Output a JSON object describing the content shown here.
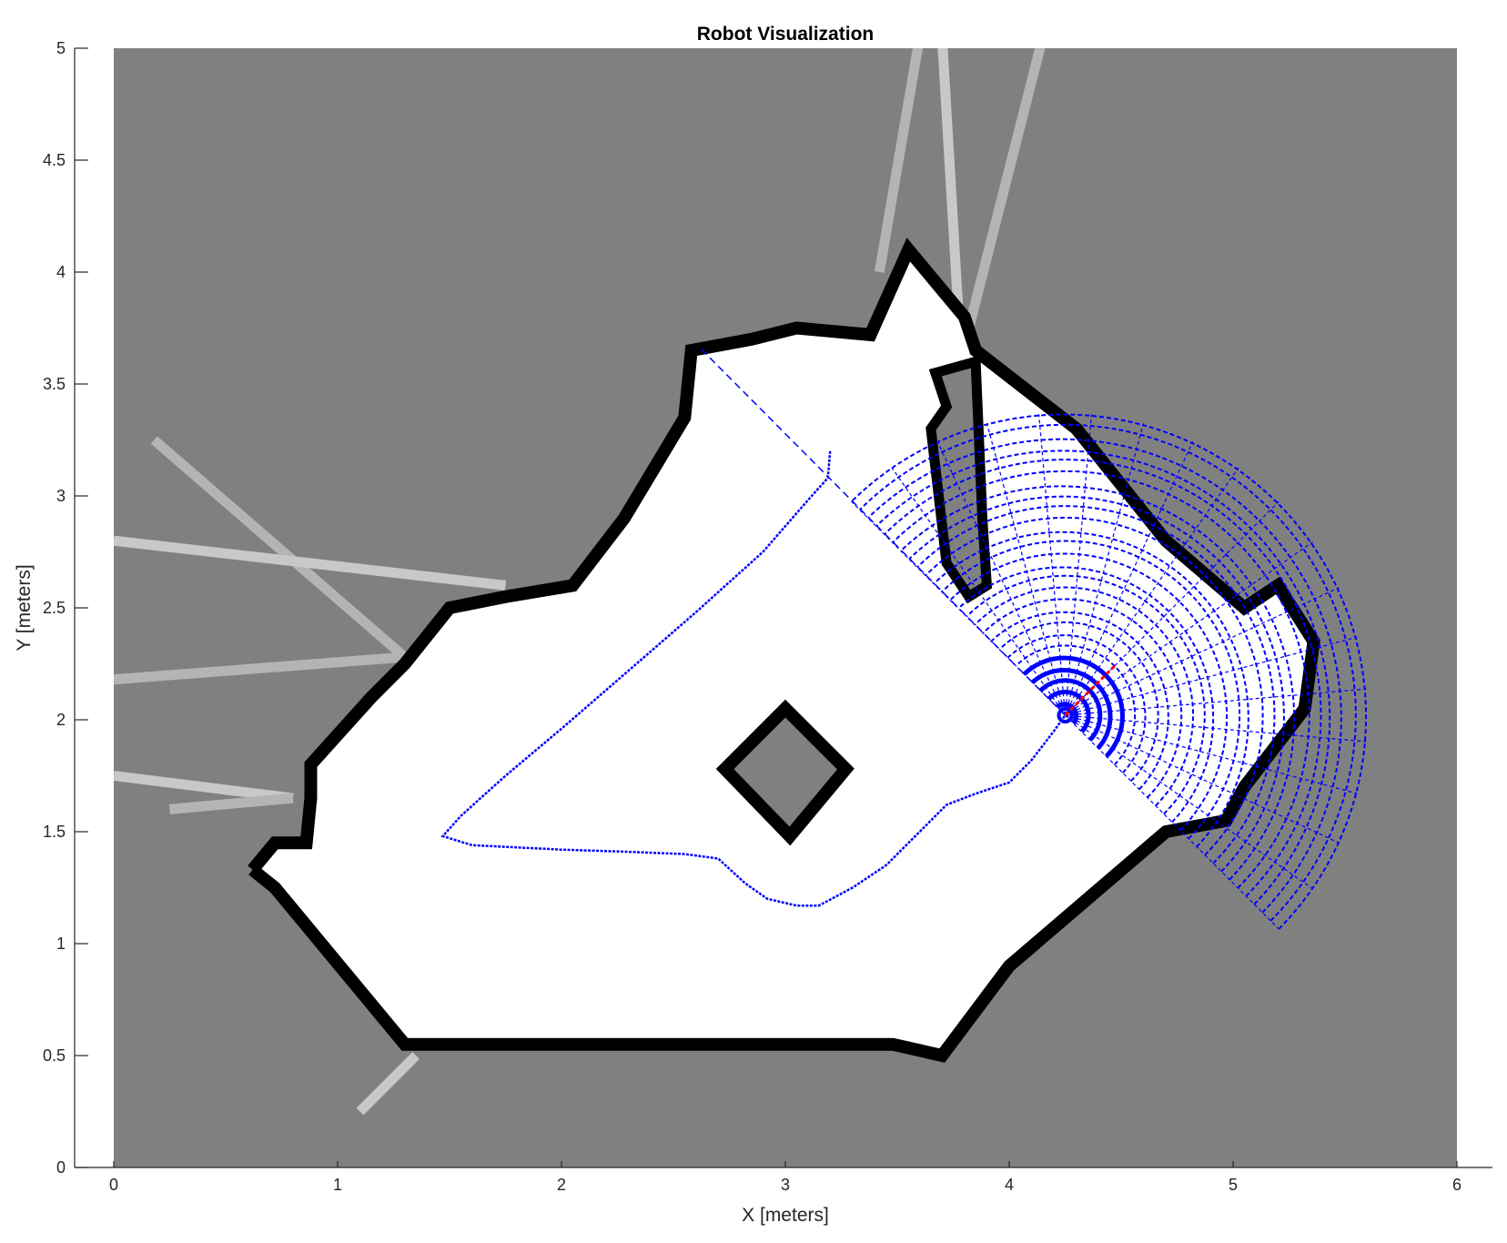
{
  "chart_data": {
    "type": "scatter",
    "title": "Robot Visualization",
    "xlabel": "X [meters]",
    "ylabel": "Y [meters]",
    "xlim": [
      0,
      6
    ],
    "ylim": [
      0,
      5
    ],
    "xticks": [
      "0",
      "1",
      "2",
      "3",
      "4",
      "5",
      "6"
    ],
    "yticks": [
      "0",
      "0.5",
      "1",
      "1.5",
      "2",
      "2.5",
      "3",
      "3.5",
      "4",
      "4.5",
      "5"
    ],
    "grid": false,
    "legend": "none",
    "colors": {
      "unknown": "#808080",
      "free": "#ffffff",
      "occupied": "#000000",
      "path": "#0000ff",
      "scan": "#0000ff",
      "heading": "#ff0000"
    },
    "occupancy_free_region": [
      [
        0.62,
        1.33
      ],
      [
        0.72,
        1.25
      ],
      [
        1.3,
        0.55
      ],
      [
        3.48,
        0.55
      ],
      [
        3.7,
        0.5
      ],
      [
        4.0,
        0.9
      ],
      [
        4.7,
        1.5
      ],
      [
        4.97,
        1.55
      ],
      [
        5.05,
        1.7
      ],
      [
        5.32,
        2.05
      ],
      [
        5.36,
        2.35
      ],
      [
        5.2,
        2.6
      ],
      [
        5.05,
        2.5
      ],
      [
        4.7,
        2.8
      ],
      [
        4.3,
        3.3
      ],
      [
        3.85,
        3.65
      ],
      [
        3.8,
        3.8
      ],
      [
        3.55,
        4.1
      ],
      [
        3.38,
        3.72
      ],
      [
        3.05,
        3.75
      ],
      [
        2.85,
        3.7
      ],
      [
        2.58,
        3.65
      ],
      [
        2.55,
        3.35
      ],
      [
        2.28,
        2.9
      ],
      [
        2.05,
        2.6
      ],
      [
        1.75,
        2.55
      ],
      [
        1.5,
        2.5
      ],
      [
        1.3,
        2.25
      ],
      [
        1.15,
        2.1
      ],
      [
        0.88,
        1.8
      ],
      [
        0.88,
        1.65
      ],
      [
        0.86,
        1.45
      ],
      [
        0.72,
        1.45
      ]
    ],
    "occupied_outline": [
      [
        0.62,
        1.33
      ],
      [
        0.72,
        1.25
      ],
      [
        1.3,
        0.55
      ],
      [
        3.48,
        0.55
      ],
      [
        3.7,
        0.5
      ],
      [
        4.0,
        0.9
      ],
      [
        4.7,
        1.5
      ],
      [
        4.97,
        1.55
      ],
      [
        5.05,
        1.7
      ],
      [
        5.32,
        2.05
      ],
      [
        5.36,
        2.35
      ],
      [
        5.2,
        2.6
      ],
      [
        5.05,
        2.5
      ],
      [
        4.7,
        2.8
      ],
      [
        4.3,
        3.3
      ],
      [
        3.85,
        3.65
      ],
      [
        3.8,
        3.8
      ],
      [
        3.55,
        4.1
      ],
      [
        3.38,
        3.72
      ],
      [
        3.05,
        3.75
      ],
      [
        2.85,
        3.7
      ],
      [
        2.58,
        3.65
      ],
      [
        2.55,
        3.35
      ],
      [
        2.28,
        2.9
      ],
      [
        2.05,
        2.6
      ],
      [
        1.75,
        2.55
      ],
      [
        1.5,
        2.5
      ],
      [
        1.3,
        2.25
      ],
      [
        1.15,
        2.1
      ],
      [
        0.88,
        1.8
      ],
      [
        0.88,
        1.65
      ],
      [
        0.86,
        1.45
      ],
      [
        0.72,
        1.45
      ],
      [
        0.62,
        1.33
      ]
    ],
    "obstacle_box": [
      [
        3.0,
        2.05
      ],
      [
        3.27,
        1.78
      ],
      [
        3.02,
        1.48
      ],
      [
        2.73,
        1.78
      ]
    ],
    "narrow_wall": [
      [
        3.67,
        3.55
      ],
      [
        3.72,
        3.4
      ],
      [
        3.65,
        3.3
      ],
      [
        3.72,
        2.7
      ],
      [
        3.82,
        2.55
      ],
      [
        3.9,
        2.6
      ],
      [
        3.88,
        2.9
      ],
      [
        3.85,
        3.6
      ]
    ],
    "ray_traces": [
      [
        [
          0.18,
          3.25
        ],
        [
          1.3,
          2.28
        ]
      ],
      [
        [
          0.0,
          2.8
        ],
        [
          1.75,
          2.6
        ]
      ],
      [
        [
          0.0,
          2.18
        ],
        [
          1.3,
          2.28
        ]
      ],
      [
        [
          0.0,
          1.75
        ],
        [
          0.8,
          1.65
        ]
      ],
      [
        [
          0.25,
          1.6
        ],
        [
          0.8,
          1.65
        ]
      ],
      [
        [
          1.1,
          0.25
        ],
        [
          1.35,
          0.5
        ]
      ],
      [
        [
          3.42,
          4.0
        ],
        [
          3.6,
          5.05
        ]
      ],
      [
        [
          3.78,
          3.7
        ],
        [
          3.7,
          5.05
        ]
      ],
      [
        [
          3.82,
          3.75
        ],
        [
          4.15,
          5.05
        ]
      ]
    ],
    "robot_pose": {
      "x": 4.25,
      "y": 2.02,
      "heading_deg": 45
    },
    "lidar_scan": {
      "angle_min_deg": -45,
      "angle_max_deg": 135,
      "max_range": 1.35
    },
    "long_beam_end": [
      2.62,
      3.66
    ],
    "path": [
      [
        3.2,
        3.2
      ],
      [
        3.19,
        3.08
      ],
      [
        3.1,
        2.98
      ],
      [
        2.9,
        2.75
      ],
      [
        2.6,
        2.48
      ],
      [
        2.3,
        2.22
      ],
      [
        2.0,
        1.96
      ],
      [
        1.75,
        1.75
      ],
      [
        1.55,
        1.57
      ],
      [
        1.47,
        1.48
      ],
      [
        1.6,
        1.44
      ],
      [
        2.0,
        1.42
      ],
      [
        2.3,
        1.41
      ],
      [
        2.55,
        1.4
      ],
      [
        2.7,
        1.38
      ],
      [
        2.82,
        1.27
      ],
      [
        2.92,
        1.2
      ],
      [
        3.05,
        1.17
      ],
      [
        3.15,
        1.17
      ],
      [
        3.3,
        1.25
      ],
      [
        3.45,
        1.35
      ],
      [
        3.6,
        1.5
      ],
      [
        3.72,
        1.62
      ],
      [
        3.85,
        1.67
      ],
      [
        4.0,
        1.72
      ],
      [
        4.1,
        1.82
      ],
      [
        4.2,
        1.95
      ],
      [
        4.25,
        2.02
      ]
    ]
  }
}
